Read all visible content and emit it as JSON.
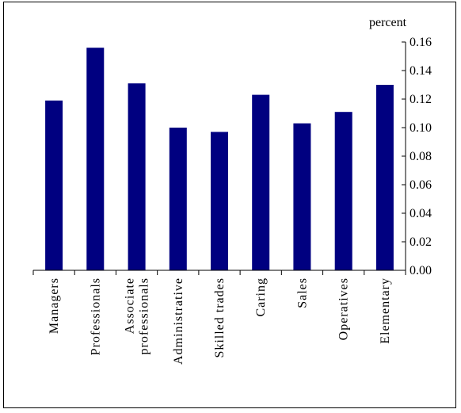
{
  "chart_data": {
    "type": "bar",
    "categories": [
      [
        "Managers"
      ],
      [
        "Professionals"
      ],
      [
        "Associate",
        "professionals"
      ],
      [
        "Administrative"
      ],
      [
        "Skilled trades"
      ],
      [
        "Caring"
      ],
      [
        "Sales"
      ],
      [
        "Operatives"
      ],
      [
        "Elementary"
      ]
    ],
    "values": [
      0.119,
      0.156,
      0.131,
      0.1,
      0.097,
      0.123,
      0.103,
      0.111,
      0.13
    ],
    "y_unit_label": "percent",
    "ylim": [
      0,
      0.16
    ],
    "y_ticks": [
      "0.00",
      "0.02",
      "0.04",
      "0.06",
      "0.08",
      "0.10",
      "0.12",
      "0.14",
      "0.16"
    ],
    "y_axis_position": "right",
    "bar_color": "#000080",
    "grid": false,
    "legend": "none"
  }
}
